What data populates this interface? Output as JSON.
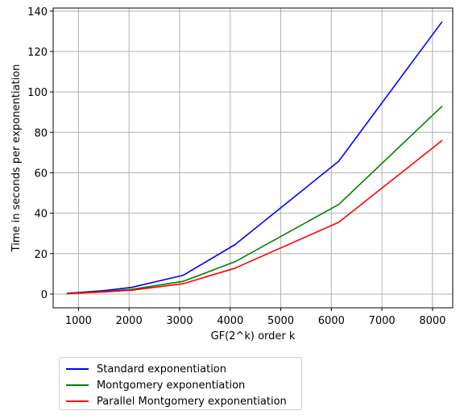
{
  "chart_data": {
    "type": "line",
    "title": "",
    "xlabel": "GF(2^k) order k",
    "ylabel": "Time in seconds per exponentiation",
    "xlim": [
      500,
      8400
    ],
    "ylim": [
      -6.8,
      141.5
    ],
    "xticks": [
      1000,
      2000,
      3000,
      4000,
      5000,
      6000,
      7000,
      8000
    ],
    "yticks": [
      0,
      20,
      40,
      60,
      80,
      100,
      120,
      140
    ],
    "xtick_labels": [
      "1000",
      "2000",
      "3000",
      "4000",
      "5000",
      "6000",
      "7000",
      "8000"
    ],
    "ytick_labels": [
      "0",
      "20",
      "40",
      "60",
      "80",
      "100",
      "120",
      "140"
    ],
    "grid": true,
    "legend_position": "below-left",
    "x": [
      769,
      1024,
      1536,
      2048,
      3072,
      4096,
      6144,
      8192
    ],
    "series": [
      {
        "name": "Standard exponentiation",
        "color": "#0000ff",
        "values": [
          0.4,
          0.8,
          1.8,
          3.3,
          9.3,
          24.5,
          65.7,
          134.8
        ]
      },
      {
        "name": "Montgomery exponentiation",
        "color": "#008000",
        "values": [
          0.3,
          0.6,
          1.3,
          2.3,
          6.3,
          16.0,
          44.3,
          93.0
        ]
      },
      {
        "name": "Parallel Montgomery exponentiation",
        "color": "#ff0000",
        "values": [
          0.2,
          0.5,
          1.1,
          1.9,
          5.1,
          12.8,
          35.5,
          76.0
        ]
      }
    ]
  }
}
